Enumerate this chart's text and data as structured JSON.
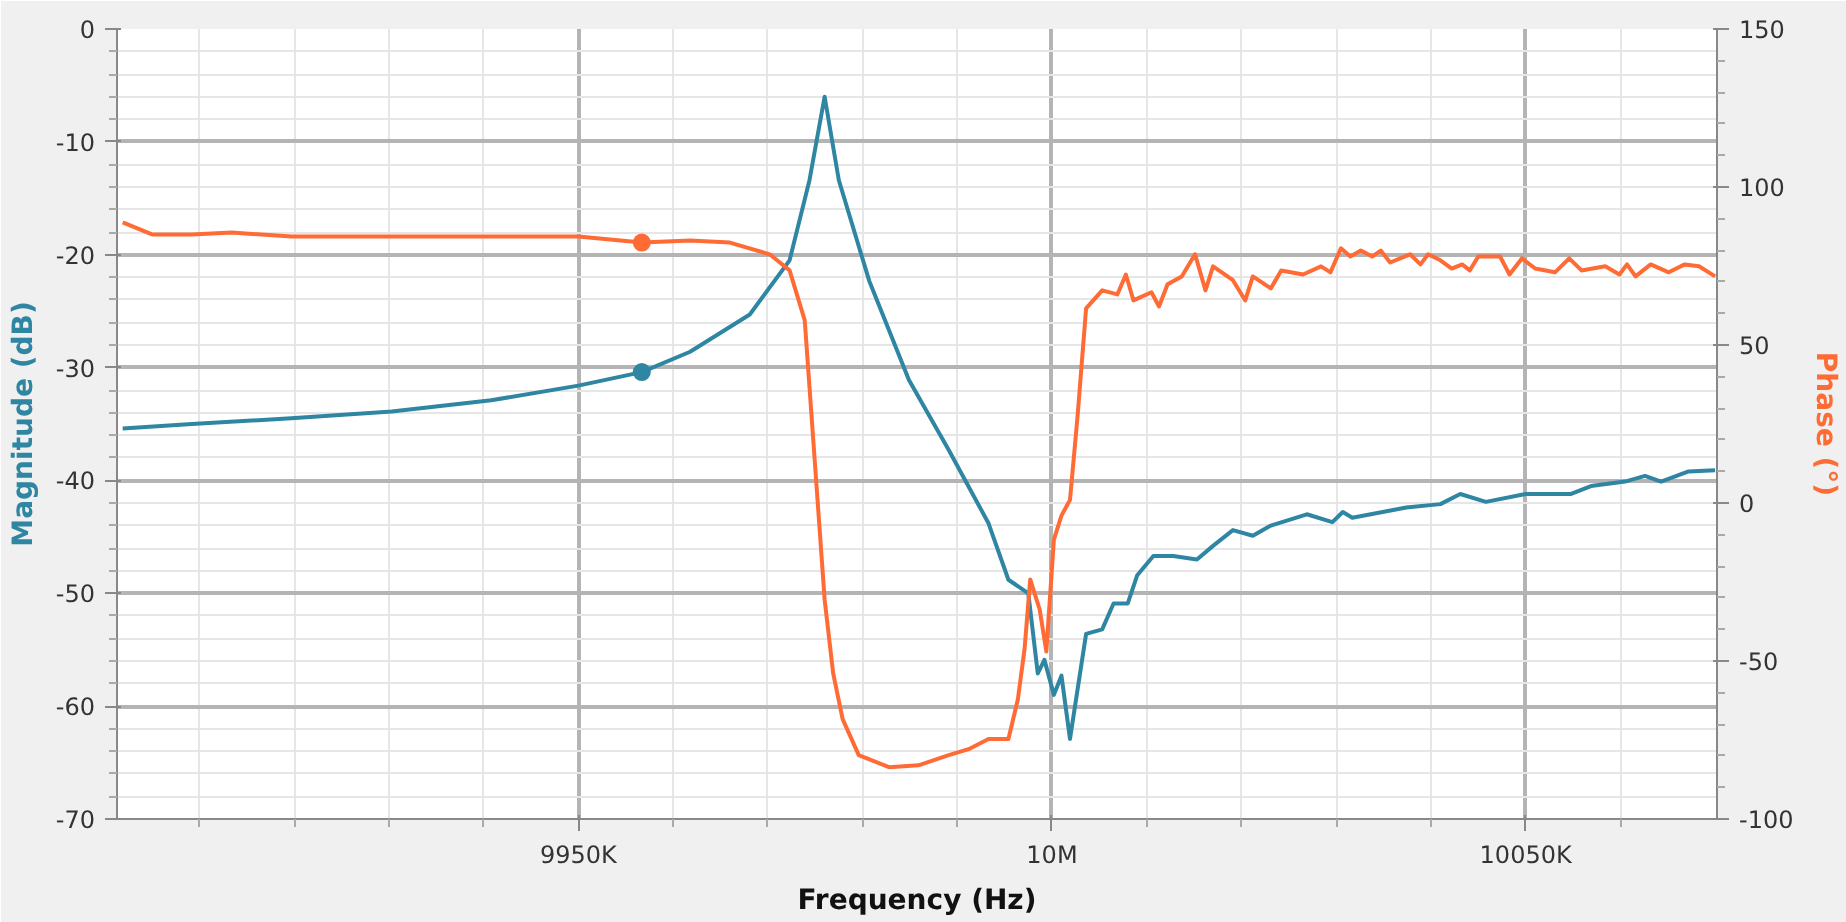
{
  "chart_data": {
    "type": "line",
    "xlabel": "Frequency (Hz)",
    "ylabel": "Magnitude (dB)",
    "y2label": "Phase (°)",
    "xlim": [
      9901300,
      10070200
    ],
    "ylim": [
      -70,
      0
    ],
    "y2lim": [
      -100,
      150
    ],
    "xticks": [
      {
        "value": 9910000,
        "label": null
      },
      {
        "value": 9920000,
        "label": null
      },
      {
        "value": 9930000,
        "label": null
      },
      {
        "value": 9940000,
        "label": null
      },
      {
        "value": 9950000,
        "label": "9950K"
      },
      {
        "value": 9960000,
        "label": null
      },
      {
        "value": 9970000,
        "label": null
      },
      {
        "value": 9980000,
        "label": null
      },
      {
        "value": 9990000,
        "label": null
      },
      {
        "value": 10000000,
        "label": "10M"
      },
      {
        "value": 10010000,
        "label": null
      },
      {
        "value": 10020000,
        "label": null
      },
      {
        "value": 10030000,
        "label": null
      },
      {
        "value": 10040000,
        "label": null
      },
      {
        "value": 10050000,
        "label": "10050K"
      },
      {
        "value": 10060000,
        "label": null
      }
    ],
    "yticks": [
      0,
      {
        "value": -2,
        "label": null
      },
      {
        "value": -4,
        "label": null
      },
      {
        "value": -6,
        "label": null
      },
      {
        "value": -8,
        "label": null
      },
      -10,
      {
        "value": -12,
        "label": null
      },
      {
        "value": -14,
        "label": null
      },
      {
        "value": -16,
        "label": null
      },
      {
        "value": -18,
        "label": null
      },
      -20,
      {
        "value": -22,
        "label": null
      },
      {
        "value": -24,
        "label": null
      },
      {
        "value": -26,
        "label": null
      },
      {
        "value": -28,
        "label": null
      },
      -30,
      {
        "value": -32,
        "label": null
      },
      {
        "value": -34,
        "label": null
      },
      {
        "value": -36,
        "label": null
      },
      {
        "value": -38,
        "label": null
      },
      -40,
      {
        "value": -42,
        "label": null
      },
      {
        "value": -44,
        "label": null
      },
      {
        "value": -46,
        "label": null
      },
      {
        "value": -48,
        "label": null
      },
      -50,
      {
        "value": -52,
        "label": null
      },
      {
        "value": -54,
        "label": null
      },
      {
        "value": -56,
        "label": null
      },
      {
        "value": -58,
        "label": null
      },
      -60,
      {
        "value": -62,
        "label": null
      },
      {
        "value": -64,
        "label": null
      },
      {
        "value": -66,
        "label": null
      },
      {
        "value": -68,
        "label": null
      },
      -70
    ],
    "y2ticks": [
      150,
      {
        "value": 140,
        "label": null
      },
      {
        "value": 130,
        "label": null
      },
      {
        "value": 120,
        "label": null
      },
      {
        "value": 110,
        "label": null
      },
      100,
      {
        "value": 90,
        "label": null
      },
      {
        "value": 80,
        "label": null
      },
      {
        "value": 70,
        "label": null
      },
      {
        "value": 60,
        "label": null
      },
      50,
      {
        "value": 40,
        "label": null
      },
      {
        "value": 30,
        "label": null
      },
      {
        "value": 20,
        "label": null
      },
      {
        "value": 10,
        "label": null
      },
      0,
      {
        "value": -10,
        "label": null
      },
      {
        "value": -20,
        "label": null
      },
      {
        "value": -30,
        "label": null
      },
      {
        "value": -40,
        "label": null
      },
      -50,
      {
        "value": -60,
        "label": null
      },
      {
        "value": -70,
        "label": null
      },
      {
        "value": -80,
        "label": null
      },
      {
        "value": -90,
        "label": null
      },
      -100
    ],
    "grid": true,
    "line_style": "solid",
    "series": [
      {
        "color": "#2e86a3",
        "marker": "none",
        "x": [
          9901900,
          9909200,
          9919700,
          9930300,
          9940800,
          9950000,
          9956700,
          9961800,
          9968100,
          9972300,
          9974400,
          9976000,
          9977500,
          9980700,
          9984900,
          9989100,
          9993300,
          9995400,
          9997500,
          9998500,
          9999200,
          10000200,
          10001000,
          10001900,
          10003600,
          10005300,
          10006500,
          10008000,
          10009000,
          10010700,
          10012800,
          10015300,
          10017000,
          10019100,
          10021200,
          10023100,
          10026900,
          10029600,
          10030700,
          10031700,
          10037400,
          10041000,
          10043100,
          10045800,
          10050000,
          10054800,
          10056900,
          10060500,
          10062600,
          10064300,
          10067200,
          10070000
        ],
        "values": [
          -35.4,
          -35.0,
          -34.5,
          -33.9,
          -32.9,
          -31.6,
          -30.4,
          -28.6,
          -25.3,
          -20.5,
          -13.4,
          -6.0,
          -13.4,
          -22.3,
          -31.1,
          -37.3,
          -43.8,
          -48.8,
          -50.0,
          -57.1,
          -55.9,
          -59.0,
          -57.3,
          -62.9,
          -53.6,
          -53.2,
          -50.9,
          -50.9,
          -48.4,
          -46.7,
          -46.7,
          -47.0,
          -45.8,
          -44.4,
          -44.9,
          -44.0,
          -43.0,
          -43.7,
          -42.8,
          -43.3,
          -42.4,
          -42.1,
          -41.2,
          -41.9,
          -41.2,
          -41.2,
          -40.5,
          -40.1,
          -39.6,
          -40.1,
          -39.2,
          -39.1
        ]
      },
      {
        "color": "#ff6b35",
        "axis": "y2",
        "marker": "none",
        "x": [
          9901900,
          9905000,
          9909200,
          9913400,
          9919700,
          9930300,
          9940800,
          9950000,
          9956700,
          9961800,
          9966000,
          9970200,
          9972300,
          9973900,
          9974800,
          9976000,
          9976900,
          9977900,
          9979600,
          9982800,
          9985900,
          9989100,
          9991200,
          9993300,
          9995400,
          9996400,
          9997100,
          9997700,
          9998700,
          9999400,
          10000200,
          10001000,
          10001900,
          10002700,
          10003600,
          10005300,
          10006900,
          10007800,
          10008600,
          10010500,
          10011300,
          10012200,
          10013700,
          10015100,
          10016200,
          10017000,
          10019100,
          10020400,
          10021200,
          10023100,
          10024200,
          10026500,
          10028400,
          10029400,
          10030500,
          10031500,
          10032600,
          10033800,
          10034700,
          10035700,
          10037800,
          10038900,
          10039700,
          10041000,
          10042200,
          10043300,
          10044100,
          10045000,
          10047300,
          10048300,
          10049600,
          10051000,
          10053100,
          10054600,
          10055900,
          10058400,
          10059900,
          10060700,
          10061600,
          10063200,
          10065100,
          10066800,
          10068300,
          10070000
        ],
        "values": [
          88.8,
          85.0,
          85.0,
          85.6,
          84.3,
          84.3,
          84.3,
          84.3,
          82.4,
          83.1,
          82.4,
          78.7,
          73.6,
          57.8,
          19.9,
          -30.6,
          -53.9,
          -68.4,
          -79.8,
          -83.6,
          -83.0,
          -79.8,
          -77.9,
          -74.7,
          -74.7,
          -62.1,
          -46.3,
          -24.2,
          -33.7,
          -47.0,
          -11.6,
          -4.0,
          1.0,
          27.5,
          61.6,
          67.3,
          66.0,
          72.3,
          64.1,
          66.7,
          62.2,
          69.2,
          71.7,
          78.7,
          67.3,
          74.9,
          70.5,
          64.1,
          71.7,
          67.9,
          73.6,
          72.3,
          74.9,
          73.0,
          80.6,
          78.0,
          79.9,
          78.0,
          79.9,
          76.1,
          78.7,
          75.5,
          78.7,
          76.8,
          74.2,
          75.5,
          73.6,
          78.0,
          78.0,
          72.3,
          77.4,
          74.2,
          73.0,
          77.4,
          73.6,
          74.9,
          72.3,
          75.5,
          71.7,
          75.5,
          73.0,
          75.5,
          74.9,
          71.7
        ]
      },
      {
        "type": "scatter",
        "color": "#2e86a3",
        "marker": "circle",
        "x": [
          9956700
        ],
        "values": [
          -30.4
        ]
      },
      {
        "type": "scatter",
        "color": "#ff6b35",
        "marker": "circle",
        "axis": "y2",
        "x": [
          9956700
        ],
        "values": [
          82.4
        ]
      }
    ]
  }
}
